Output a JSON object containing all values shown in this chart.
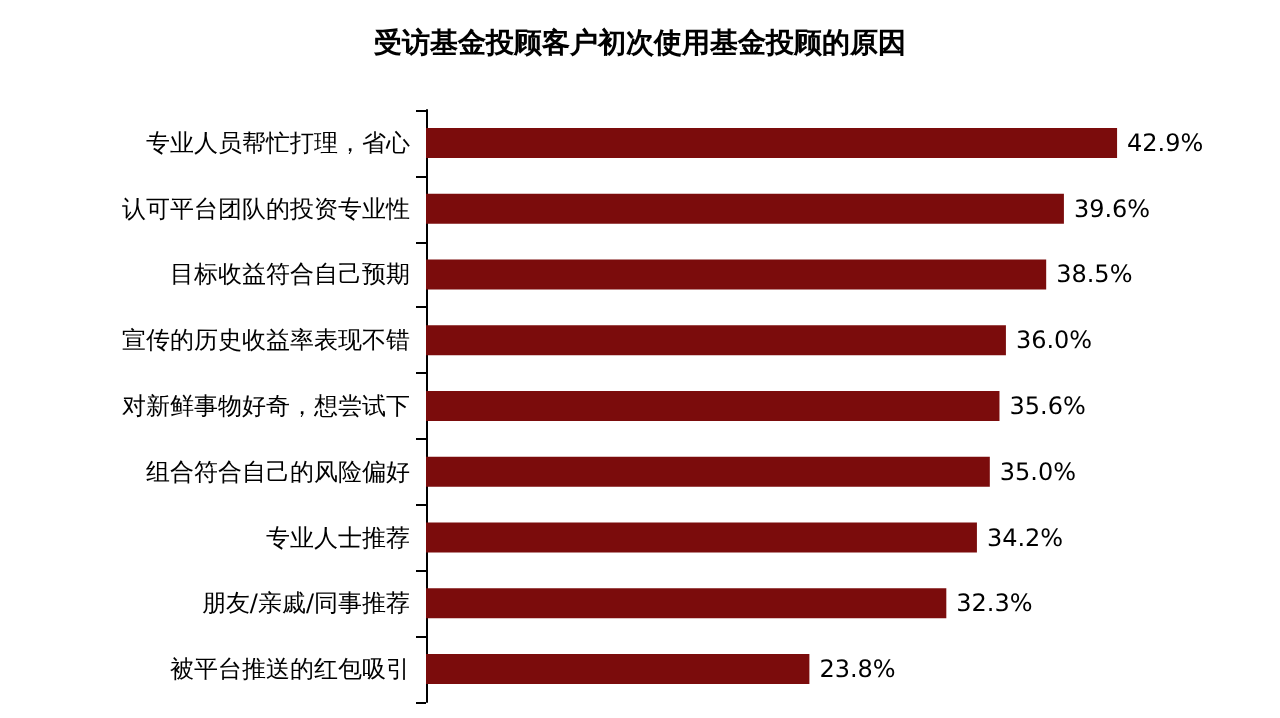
{
  "chart_data": {
    "type": "bar",
    "orientation": "horizontal",
    "title": "受访基金投顾客户初次使用基金投顾的原因",
    "categories": [
      "专业人员帮忙打理，省心",
      "认可平台团队的投资专业性",
      "目标收益符合自己预期",
      "宣传的历史收益率表现不错",
      "对新鲜事物好奇，想尝试下",
      "组合符合自己的风险偏好",
      "专业人士推荐",
      "朋友/亲戚/同事推荐",
      "被平台推送的红包吸引"
    ],
    "values": [
      42.9,
      39.6,
      38.5,
      36.0,
      35.6,
      35.0,
      34.2,
      32.3,
      23.8
    ],
    "value_labels": [
      "42.9%",
      "39.6%",
      "38.5%",
      "36.0%",
      "35.6%",
      "35.0%",
      "34.2%",
      "32.3%",
      "23.8%"
    ],
    "color": "#7b0c0c"
  }
}
